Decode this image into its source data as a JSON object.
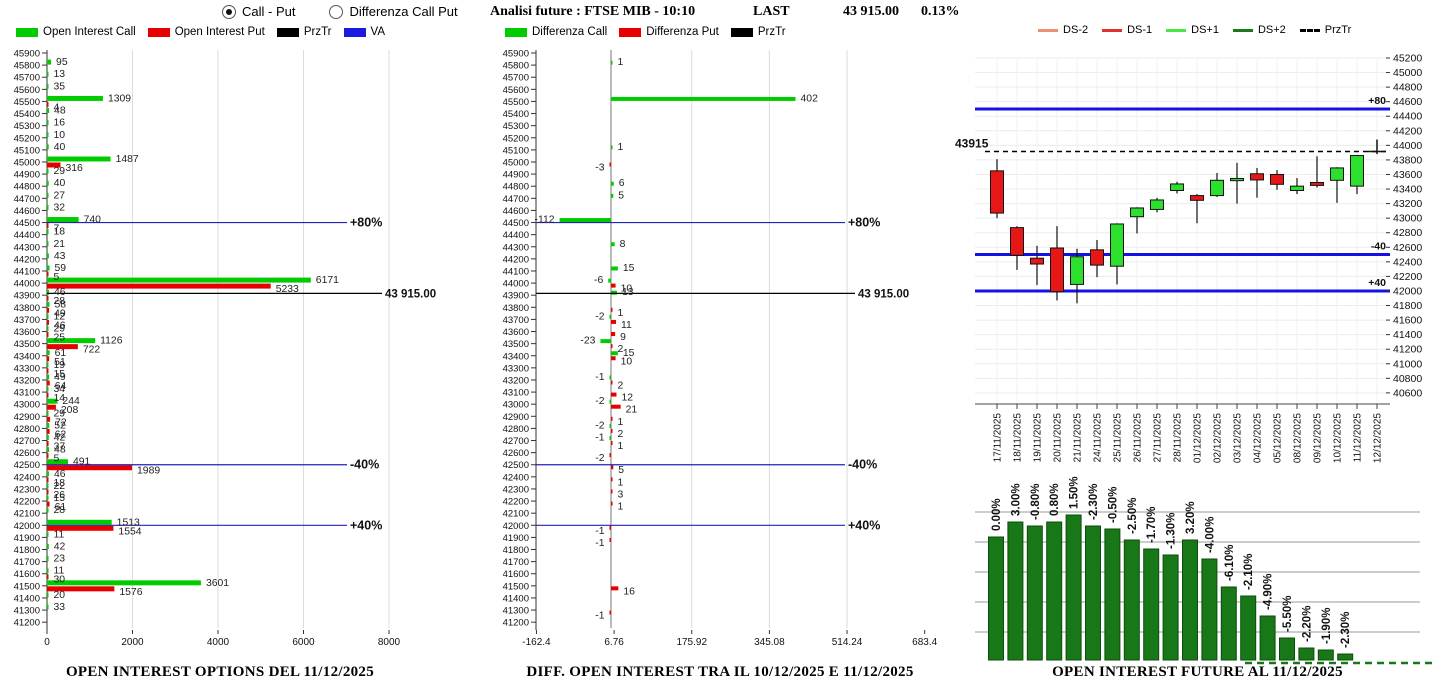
{
  "header": {
    "radio_options": [
      {
        "label": "Call - Put",
        "selected": true
      },
      {
        "label": "Differenza Call Put",
        "selected": false
      }
    ],
    "analisi_label": "Analisi future : FTSE MIB - 10:10",
    "last_label": "LAST",
    "last_value": "43 915.00",
    "last_change_pct": "0.13%"
  },
  "legends": {
    "options": [
      {
        "label": "Open Interest Call",
        "color": "#00cc00",
        "style": "solid"
      },
      {
        "label": "Open Interest Put",
        "color": "#e60000",
        "style": "solid"
      },
      {
        "label": "PrzTr",
        "color": "#000000",
        "style": "solid"
      },
      {
        "label": "VA",
        "color": "#1a1ae0",
        "style": "solid"
      }
    ],
    "diff": [
      {
        "label": "Differenza Call",
        "color": "#00cc00",
        "style": "solid"
      },
      {
        "label": "Differenza Put",
        "color": "#e60000",
        "style": "solid"
      },
      {
        "label": "PrzTr",
        "color": "#000000",
        "style": "solid"
      }
    ],
    "future": [
      {
        "label": "DS-2",
        "color": "#ef8e72",
        "style": "solid"
      },
      {
        "label": "DS-1",
        "color": "#e03030",
        "style": "solid"
      },
      {
        "label": "DS+1",
        "color": "#44e944",
        "style": "solid"
      },
      {
        "label": "DS+2",
        "color": "#1a7a1a",
        "style": "solid"
      },
      {
        "label": "PrzTr",
        "color": "#000000",
        "style": "dashed"
      }
    ]
  },
  "titles": {
    "options": "OPEN INTEREST OPTIONS DEL 11/12/2025",
    "diff": "DIFF. OPEN INTEREST TRA IL 10/12/2025 E 11/12/2025",
    "future": "OPEN INTEREST FUTURE AL 11/12/2025"
  },
  "colors": {
    "call_green": "#00cc00",
    "put_red": "#e60000",
    "candle_up": "#2ee02e",
    "candle_down": "#e81717",
    "level_blue_thin": "#2222bb",
    "level_blue_thick": "#1512e8",
    "prztr_black": "#000000",
    "future_bar_green": "#187818",
    "grid_gray": "#dcdcdc"
  },
  "chart_data": [
    {
      "id": "options_open_interest",
      "type": "bar",
      "orientation": "horizontal",
      "title": "OPEN INTEREST OPTIONS DEL 11/12/2025",
      "ylabel": "strike",
      "strike_top": 45900,
      "strike_bottom": 41200,
      "strike_step": 100,
      "xticks": [
        0,
        2000,
        4000,
        6000,
        8000
      ],
      "xlim": [
        0,
        8900
      ],
      "series_names": [
        "Open Interest Call",
        "Open Interest Put"
      ],
      "rows": [
        [
          45900,
          null,
          null
        ],
        [
          45800,
          95,
          null
        ],
        [
          45700,
          13,
          null
        ],
        [
          45600,
          35,
          null
        ],
        [
          45500,
          1309,
          4
        ],
        [
          45400,
          48,
          null
        ],
        [
          45300,
          16,
          null
        ],
        [
          45200,
          10,
          null
        ],
        [
          45100,
          40,
          null
        ],
        [
          45000,
          1487,
          316
        ],
        [
          44900,
          29,
          null
        ],
        [
          44800,
          40,
          null
        ],
        [
          44700,
          27,
          null
        ],
        [
          44600,
          32,
          null
        ],
        [
          44500,
          740,
          7
        ],
        [
          44400,
          18,
          null
        ],
        [
          44300,
          21,
          null
        ],
        [
          44200,
          43,
          null
        ],
        [
          44100,
          59,
          5
        ],
        [
          44000,
          6171,
          5233
        ],
        [
          43900,
          46,
          28
        ],
        [
          43800,
          58,
          49
        ],
        [
          43700,
          12,
          46
        ],
        [
          43600,
          29,
          25
        ],
        [
          43500,
          1126,
          722
        ],
        [
          43400,
          61,
          51
        ],
        [
          43300,
          19,
          15
        ],
        [
          43200,
          49,
          64
        ],
        [
          43100,
          34,
          14
        ],
        [
          43000,
          244,
          208
        ],
        [
          42900,
          29,
          72
        ],
        [
          42800,
          52,
          62
        ],
        [
          42700,
          42,
          37
        ],
        [
          42600,
          48,
          5
        ],
        [
          42500,
          491,
          1989
        ],
        [
          42400,
          46,
          18
        ],
        [
          42300,
          22,
          26
        ],
        [
          42200,
          15,
          61
        ],
        [
          42100,
          28,
          null
        ],
        [
          42000,
          1513,
          1554
        ],
        [
          41900,
          11,
          null
        ],
        [
          41800,
          42,
          null
        ],
        [
          41700,
          23,
          null
        ],
        [
          41600,
          11,
          30
        ],
        [
          41500,
          3601,
          1576
        ],
        [
          41400,
          20,
          null
        ],
        [
          41300,
          33,
          null
        ],
        [
          41200,
          null,
          null
        ]
      ],
      "levels": [
        {
          "value": 44500,
          "label": "+80%"
        },
        {
          "value": 42500,
          "label": "-40%"
        },
        {
          "value": 42000,
          "label": "+40%"
        }
      ],
      "prz_tr": {
        "value": 43915,
        "label": "43 915.00"
      }
    },
    {
      "id": "diff_open_interest",
      "type": "bar",
      "orientation": "horizontal",
      "title": "DIFF. OPEN INTEREST TRA IL 10/12/2025 E 11/12/2025",
      "strike_top": 45900,
      "strike_bottom": 41200,
      "strike_step": 100,
      "xticks": [
        -162.4,
        6.76,
        175.92,
        345.08,
        514.24,
        683.4
      ],
      "xlim": [
        -162.4,
        683.4
      ],
      "series_names": [
        "Differenza Call",
        "Differenza Put"
      ],
      "rows": [
        [
          45800,
          1,
          null
        ],
        [
          45500,
          402,
          null
        ],
        [
          45100,
          1,
          null
        ],
        [
          45000,
          null,
          -3
        ],
        [
          44800,
          6,
          null
        ],
        [
          44700,
          5,
          null
        ],
        [
          44500,
          -112,
          null
        ],
        [
          44300,
          8,
          null
        ],
        [
          44100,
          15,
          null
        ],
        [
          44000,
          -6,
          10
        ],
        [
          43900,
          13,
          null
        ],
        [
          43800,
          null,
          1
        ],
        [
          43700,
          -2,
          11
        ],
        [
          43600,
          null,
          9
        ],
        [
          43500,
          -23,
          2
        ],
        [
          43400,
          15,
          10
        ],
        [
          43200,
          -1,
          2
        ],
        [
          43100,
          null,
          12
        ],
        [
          43000,
          -2,
          21
        ],
        [
          42900,
          null,
          1
        ],
        [
          42800,
          -2,
          2
        ],
        [
          42700,
          -1,
          1
        ],
        [
          42600,
          null,
          -2
        ],
        [
          42500,
          null,
          5
        ],
        [
          42400,
          null,
          1
        ],
        [
          42300,
          null,
          3
        ],
        [
          42200,
          null,
          1
        ],
        [
          42000,
          null,
          -1
        ],
        [
          41900,
          null,
          -1
        ],
        [
          41500,
          null,
          16
        ],
        [
          41300,
          null,
          -1
        ]
      ],
      "levels": [
        {
          "value": 44500,
          "label": "+80%"
        },
        {
          "value": 42500,
          "label": "-40%"
        },
        {
          "value": 42000,
          "label": "+40%"
        }
      ],
      "prz_tr": {
        "value": 43915,
        "label": "43 915.00"
      }
    },
    {
      "id": "future_candles",
      "type": "candlestick",
      "ytick_top": 45200,
      "ytick_bottom": 40600,
      "ytick_step": 200,
      "dates": [
        "17/11/2025",
        "18/11/2025",
        "19/11/2025",
        "20/11/2025",
        "21/11/2025",
        "24/11/2025",
        "25/11/2025",
        "26/11/2025",
        "27/11/2025",
        "28/11/2025",
        "01/12/2025",
        "02/12/2025",
        "03/12/2025",
        "04/12/2025",
        "05/12/2025",
        "08/12/2025",
        "09/12/2025",
        "10/12/2025",
        "11/12/2025",
        "12/12/2025"
      ],
      "candles": [
        [
          43650,
          43810,
          43000,
          43070
        ],
        [
          42870,
          42890,
          42290,
          42490
        ],
        [
          42450,
          42620,
          42080,
          42370
        ],
        [
          42590,
          42890,
          41870,
          41990
        ],
        [
          42090,
          42580,
          41830,
          42470
        ],
        [
          42565,
          42700,
          42190,
          42355
        ],
        [
          42340,
          42930,
          42090,
          42920
        ],
        [
          43020,
          43150,
          42790,
          43140
        ],
        [
          43120,
          43280,
          43080,
          43250
        ],
        [
          43380,
          43500,
          43340,
          43470
        ],
        [
          43310,
          43330,
          42930,
          43245
        ],
        [
          43310,
          43620,
          43290,
          43520
        ],
        [
          43515,
          43760,
          43200,
          43545
        ],
        [
          43610,
          43690,
          43280,
          43525
        ],
        [
          43600,
          43660,
          43390,
          43465
        ],
        [
          43380,
          43550,
          43330,
          43440
        ],
        [
          43490,
          43850,
          43420,
          43450
        ],
        [
          43520,
          43700,
          43210,
          43690
        ],
        [
          43440,
          43870,
          43330,
          43860
        ]
      ],
      "last_marker": {
        "value": 43915,
        "high": 44080,
        "low": 43880
      },
      "levels": [
        {
          "value": 44500,
          "label": "+80"
        },
        {
          "value": 42500,
          "label": "-40"
        },
        {
          "value": 42000,
          "label": "+40"
        }
      ],
      "prz_tr": {
        "value": 43915,
        "label": "43915"
      }
    },
    {
      "id": "future_open_interest",
      "type": "bar",
      "title": "OPEN INTEREST FUTURE AL 11/12/2025",
      "labels": [
        "0.00%",
        "3.00%",
        "-0.80%",
        "0.80%",
        "1.50%",
        "-2.30%",
        "-0.50%",
        "-2.50%",
        "-1.70%",
        "-1.30%",
        "3.20%",
        "-4.00%",
        "-6.10%",
        "-2.10%",
        "-4.90%",
        "-5.50%",
        "-2.20%",
        "-1.90%",
        "-2.30%"
      ],
      "relative_heights": [
        123,
        138,
        134,
        138,
        145,
        134,
        131,
        120,
        111,
        105,
        120,
        101,
        73,
        64,
        44,
        22,
        12,
        10,
        6
      ]
    }
  ]
}
